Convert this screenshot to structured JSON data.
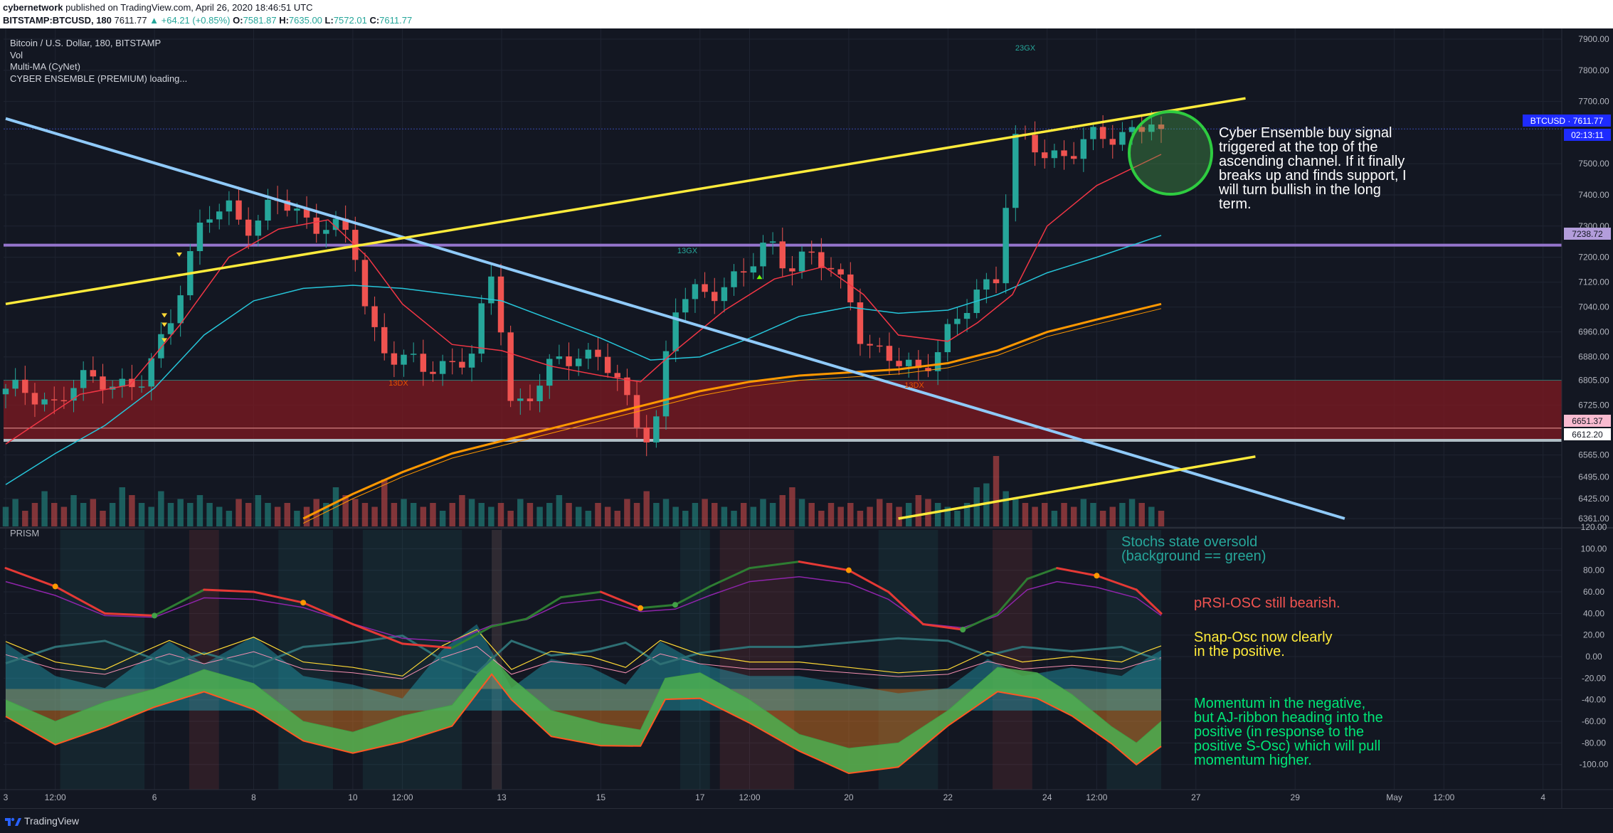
{
  "header": {
    "author": "cybernetwork",
    "published": "published on TradingView.com, April 26, 2020 18:46:51 UTC",
    "symbol": "BITSTAMP:BTCUSD, 180",
    "last": "7611.77",
    "change": "▲ +64.21 (+0.85%)",
    "o_label": "O:",
    "o_val": "7581.87",
    "h_label": "H:",
    "h_val": "7635.00",
    "l_label": "L:",
    "l_val": "7572.01",
    "c_label": "C:",
    "c_val": "7611.77"
  },
  "legend": {
    "title": "Bitcoin / U.S. Dollar, 180, BITSTAMP",
    "vol": "Vol",
    "ma": "Multi-MA (CyNet)",
    "cyber": "CYBER ENSEMBLE (PREMIUM) loading..."
  },
  "price_scale": {
    "ticks": [
      "7900.00",
      "7800.00",
      "7700.00",
      "7500.00",
      "7400.00",
      "7300.00",
      "7200.00",
      "7120.00",
      "7040.00",
      "6960.00",
      "6880.00",
      "6805.00",
      "6725.00",
      "6565.00",
      "6495.00",
      "6425.00",
      "6361.00"
    ],
    "badges": {
      "symbol": "BTCUSD · 7611.77",
      "countdown": "02:13:11",
      "level_purple": "7238.72",
      "level_red": "6651.37",
      "level_white": "6612.20"
    }
  },
  "osc_scale": {
    "ticks": [
      "120.00",
      "100.00",
      "80.00",
      "60.00",
      "40.00",
      "20.00",
      "0.00",
      "-20.00",
      "-40.00",
      "-60.00",
      "-80.00",
      "-100.00"
    ]
  },
  "time_axis": [
    "3",
    "12:00",
    "6",
    "8",
    "10",
    "12:00",
    "13",
    "15",
    "17",
    "12:00",
    "20",
    "22",
    "24",
    "12:00",
    "27",
    "29",
    "May",
    "12:00",
    "4"
  ],
  "markers": {
    "m23gx": "23GX",
    "m13gx": "13GX",
    "m13dx_a": "13DX",
    "m13dx_b": "13DX"
  },
  "annotations": {
    "main": "Cyber Ensemble buy signal triggered at the top of the ascending channel. If it finally breaks up and finds support, I will turn bullish in the long term.",
    "main_lines": [
      "Cyber Ensemble buy signal",
      "triggered at the top of the",
      "ascending channel. If it finally",
      "breaks up and finds support, I",
      "will turn bullish in the long",
      "term."
    ],
    "stochs": [
      "Stochs state oversold",
      "(background == green)"
    ],
    "prsi": "pRSI-OSC still bearish.",
    "snap": [
      "Snap-Osc now clearly",
      "in the positive."
    ],
    "momentum": [
      "Momentum in the negative,",
      "but AJ-ribbon heading into the",
      "positive (in response to the",
      "positive S-Osc) which will pull",
      "momentum higher."
    ]
  },
  "panel_labels": {
    "prism": "PRISM"
  },
  "footer": {
    "brand": "TradingView"
  },
  "colors": {
    "bg": "#131722",
    "up": "#26a69a",
    "down": "#ef5350",
    "channel": "#ffeb3b",
    "downtrend": "#90caf9",
    "ema_red": "#f23645",
    "ema_cyan": "#26c6da",
    "ma_orange": "#ff9800",
    "zone": "#801922",
    "level_purple": "#9575cd",
    "circle": "#4caf50",
    "annot_main": "#ffffff",
    "annot_stochs": "#26a69a",
    "annot_prsi": "#ef5350",
    "annot_snap": "#ffeb3b",
    "annot_momentum": "#00e676"
  },
  "chart_data": [
    {
      "type": "candlestick",
      "title": "Bitcoin / U.S. Dollar, 180, BITSTAMP",
      "ylim": [
        6361,
        7900
      ],
      "x_range": [
        "Apr 3",
        "May 4"
      ],
      "last_price": 7611.77,
      "open": 7581.87,
      "high": 7635.0,
      "low": 7572.01,
      "close": 7611.77,
      "levels": [
        7238.72,
        6651.37,
        6612.2,
        6805.0
      ],
      "price_path": [
        [
          3.0,
          6760
        ],
        [
          3.5,
          6780
        ],
        [
          4.0,
          6720
        ],
        [
          4.5,
          6800
        ],
        [
          5.0,
          6820
        ],
        [
          5.5,
          6770
        ],
        [
          5.8,
          6800
        ],
        [
          6.2,
          6960
        ],
        [
          6.6,
          7150
        ],
        [
          7.0,
          7320
        ],
        [
          7.5,
          7360
        ],
        [
          8.0,
          7300
        ],
        [
          8.5,
          7380
        ],
        [
          9.0,
          7330
        ],
        [
          9.5,
          7300
        ],
        [
          10.0,
          7250
        ],
        [
          10.3,
          7000
        ],
        [
          10.7,
          6900
        ],
        [
          11.0,
          6860
        ],
        [
          11.5,
          6840
        ],
        [
          12.0,
          6870
        ],
        [
          12.4,
          6880
        ],
        [
          12.8,
          7140
        ],
        [
          13.0,
          6980
        ],
        [
          13.2,
          6720
        ],
        [
          13.6,
          6760
        ],
        [
          14.0,
          6840
        ],
        [
          14.5,
          6900
        ],
        [
          15.0,
          6880
        ],
        [
          15.3,
          6800
        ],
        [
          15.6,
          6700
        ],
        [
          15.9,
          6640
        ],
        [
          16.2,
          6700
        ],
        [
          16.4,
          7020
        ],
        [
          16.8,
          7070
        ],
        [
          17.2,
          7100
        ],
        [
          17.6,
          7120
        ],
        [
          18.0,
          7160
        ],
        [
          18.4,
          7250
        ],
        [
          18.8,
          7180
        ],
        [
          19.2,
          7200
        ],
        [
          19.6,
          7160
        ],
        [
          20.0,
          7100
        ],
        [
          20.3,
          6920
        ],
        [
          20.6,
          6880
        ],
        [
          21.0,
          6860
        ],
        [
          21.4,
          6850
        ],
        [
          21.8,
          6900
        ],
        [
          22.2,
          6990
        ],
        [
          22.6,
          7100
        ],
        [
          23.0,
          7150
        ],
        [
          23.3,
          7560
        ],
        [
          23.7,
          7560
        ],
        [
          24.0,
          7530
        ],
        [
          24.5,
          7540
        ],
        [
          25.0,
          7580
        ],
        [
          25.5,
          7600
        ],
        [
          26.0,
          7630
        ],
        [
          26.3,
          7611.77
        ]
      ],
      "ema_red": [
        [
          3.0,
          6600
        ],
        [
          4.5,
          6760
        ],
        [
          5.5,
          6790
        ],
        [
          6.5,
          6980
        ],
        [
          7.5,
          7200
        ],
        [
          8.5,
          7290
        ],
        [
          9.5,
          7320
        ],
        [
          10.3,
          7200
        ],
        [
          11.0,
          7050
        ],
        [
          12.0,
          6920
        ],
        [
          13.0,
          6900
        ],
        [
          14.0,
          6850
        ],
        [
          15.0,
          6820
        ],
        [
          15.8,
          6800
        ],
        [
          16.5,
          6900
        ],
        [
          17.5,
          7030
        ],
        [
          18.5,
          7130
        ],
        [
          19.5,
          7170
        ],
        [
          20.3,
          7080
        ],
        [
          21.0,
          6950
        ],
        [
          22.0,
          6930
        ],
        [
          22.6,
          6990
        ],
        [
          23.3,
          7080
        ],
        [
          24.0,
          7300
        ],
        [
          25.0,
          7430
        ],
        [
          26.3,
          7530
        ]
      ],
      "ema_cyan": [
        [
          3.0,
          6470
        ],
        [
          4.0,
          6570
        ],
        [
          5.0,
          6660
        ],
        [
          6.0,
          6780
        ],
        [
          7.0,
          6950
        ],
        [
          8.0,
          7060
        ],
        [
          9.0,
          7100
        ],
        [
          10.0,
          7110
        ],
        [
          11.0,
          7100
        ],
        [
          12.0,
          7080
        ],
        [
          13.0,
          7060
        ],
        [
          14.0,
          7000
        ],
        [
          15.0,
          6940
        ],
        [
          16.0,
          6870
        ],
        [
          17.0,
          6880
        ],
        [
          18.0,
          6940
        ],
        [
          19.0,
          7010
        ],
        [
          20.0,
          7040
        ],
        [
          21.0,
          7020
        ],
        [
          22.0,
          7030
        ],
        [
          23.0,
          7080
        ],
        [
          24.0,
          7150
        ],
        [
          25.0,
          7200
        ],
        [
          26.3,
          7270
        ]
      ],
      "ma_orange": [
        [
          9.0,
          6361
        ],
        [
          10.0,
          6440
        ],
        [
          11.0,
          6510
        ],
        [
          12.0,
          6570
        ],
        [
          13.0,
          6610
        ],
        [
          14.0,
          6650
        ],
        [
          15.0,
          6690
        ],
        [
          16.0,
          6730
        ],
        [
          17.0,
          6770
        ],
        [
          18.0,
          6800
        ],
        [
          19.0,
          6820
        ],
        [
          20.0,
          6830
        ],
        [
          21.0,
          6840
        ],
        [
          22.0,
          6860
        ],
        [
          23.0,
          6900
        ],
        [
          24.0,
          6960
        ],
        [
          25.0,
          7000
        ],
        [
          26.3,
          7050
        ]
      ],
      "channel_upper": [
        [
          3.0,
          7050
        ],
        [
          28.0,
          7710
        ]
      ],
      "channel_lower": [
        [
          21.0,
          6361
        ],
        [
          28.2,
          6560
        ]
      ],
      "downtrend": [
        [
          3.0,
          7645
        ],
        [
          30.0,
          6361
        ]
      ],
      "volume": [
        0.25,
        0.35,
        0.2,
        0.3,
        0.45,
        0.3,
        0.25,
        0.4,
        0.3,
        0.35,
        0.2,
        0.3,
        0.5,
        0.4,
        0.3,
        0.25,
        0.45,
        0.3,
        0.35,
        0.3,
        0.4,
        0.3,
        0.25,
        0.2,
        0.35,
        0.3,
        0.4,
        0.3,
        0.25,
        0.3,
        0.2,
        0.25,
        0.35,
        0.3,
        0.5,
        0.4,
        0.35,
        0.3,
        0.25,
        0.6,
        0.3,
        0.35,
        0.3,
        0.25,
        0.3,
        0.2,
        0.3,
        0.4,
        0.35,
        0.3,
        0.25,
        0.3,
        0.2,
        0.35,
        0.3,
        0.25,
        0.3,
        0.4,
        0.3,
        0.25,
        0.2,
        0.3,
        0.25,
        0.2,
        0.35,
        0.3,
        0.45,
        0.3,
        0.35,
        0.25,
        0.2,
        0.3,
        0.35,
        0.3,
        0.25,
        0.2,
        0.3,
        0.25,
        0.35,
        0.3,
        0.4,
        0.5,
        0.35,
        0.3,
        0.2,
        0.3,
        0.25,
        0.3,
        0.2,
        0.25,
        0.35,
        0.3,
        0.25,
        0.3,
        0.4,
        0.35,
        0.3,
        0.25,
        0.2,
        0.3,
        0.5,
        0.55,
        0.9,
        0.45,
        0.35,
        0.3,
        0.25,
        0.3,
        0.2,
        0.3,
        0.25,
        0.35,
        0.3,
        0.2,
        0.25,
        0.3,
        0.35,
        0.3,
        0.25,
        0.2
      ]
    },
    {
      "type": "line",
      "title": "PRISM",
      "ylim": [
        -120,
        120
      ],
      "x_range": [
        "Apr 3",
        "May 4"
      ],
      "prsi": [
        [
          3.0,
          82
        ],
        [
          4.0,
          65
        ],
        [
          5.0,
          40
        ],
        [
          6.0,
          38
        ],
        [
          7.0,
          62
        ],
        [
          8.0,
          60
        ],
        [
          9.0,
          50
        ],
        [
          10.0,
          30
        ],
        [
          11.0,
          12
        ],
        [
          12.0,
          8
        ],
        [
          12.8,
          28
        ],
        [
          13.5,
          35
        ],
        [
          14.2,
          55
        ],
        [
          15.0,
          60
        ],
        [
          15.8,
          45
        ],
        [
          16.5,
          48
        ],
        [
          17.2,
          65
        ],
        [
          18.0,
          82
        ],
        [
          19.0,
          88
        ],
        [
          20.0,
          80
        ],
        [
          20.8,
          60
        ],
        [
          21.5,
          30
        ],
        [
          22.3,
          25
        ],
        [
          23.0,
          40
        ],
        [
          23.6,
          72
        ],
        [
          24.2,
          82
        ],
        [
          25.0,
          75
        ],
        [
          25.8,
          62
        ],
        [
          26.3,
          40
        ]
      ],
      "snap_osc": [
        [
          3.0,
          14
        ],
        [
          4.0,
          -5
        ],
        [
          5.0,
          -12
        ],
        [
          5.8,
          5
        ],
        [
          6.3,
          15
        ],
        [
          7.0,
          2
        ],
        [
          8.0,
          18
        ],
        [
          9.0,
          -5
        ],
        [
          10.0,
          -10
        ],
        [
          11.0,
          -18
        ],
        [
          11.8,
          10
        ],
        [
          12.5,
          25
        ],
        [
          13.2,
          -12
        ],
        [
          14.0,
          5
        ],
        [
          14.8,
          0
        ],
        [
          15.5,
          -10
        ],
        [
          16.2,
          15
        ],
        [
          17.0,
          2
        ],
        [
          18.0,
          -5
        ],
        [
          19.0,
          -5
        ],
        [
          20.0,
          -10
        ],
        [
          21.0,
          -15
        ],
        [
          22.0,
          -12
        ],
        [
          22.8,
          5
        ],
        [
          23.5,
          -5
        ],
        [
          24.5,
          0
        ],
        [
          25.5,
          -5
        ],
        [
          26.0,
          5
        ],
        [
          26.3,
          10
        ]
      ],
      "momentum": [
        [
          3.0,
          -40
        ],
        [
          4.0,
          -60
        ],
        [
          5.0,
          -42
        ],
        [
          6.0,
          -30
        ],
        [
          7.0,
          -12
        ],
        [
          8.0,
          -25
        ],
        [
          9.0,
          -60
        ],
        [
          10.0,
          -70
        ],
        [
          11.0,
          -55
        ],
        [
          12.0,
          -45
        ],
        [
          12.8,
          0
        ],
        [
          13.2,
          -20
        ],
        [
          14.0,
          -50
        ],
        [
          15.0,
          -62
        ],
        [
          15.8,
          -68
        ],
        [
          16.3,
          -20
        ],
        [
          17.0,
          -15
        ],
        [
          18.0,
          -40
        ],
        [
          19.0,
          -72
        ],
        [
          20.0,
          -85
        ],
        [
          21.0,
          -80
        ],
        [
          22.0,
          -50
        ],
        [
          23.0,
          -10
        ],
        [
          23.8,
          -15
        ],
        [
          24.5,
          -35
        ],
        [
          25.3,
          -65
        ],
        [
          25.8,
          -80
        ],
        [
          26.3,
          -60
        ]
      ]
    }
  ]
}
